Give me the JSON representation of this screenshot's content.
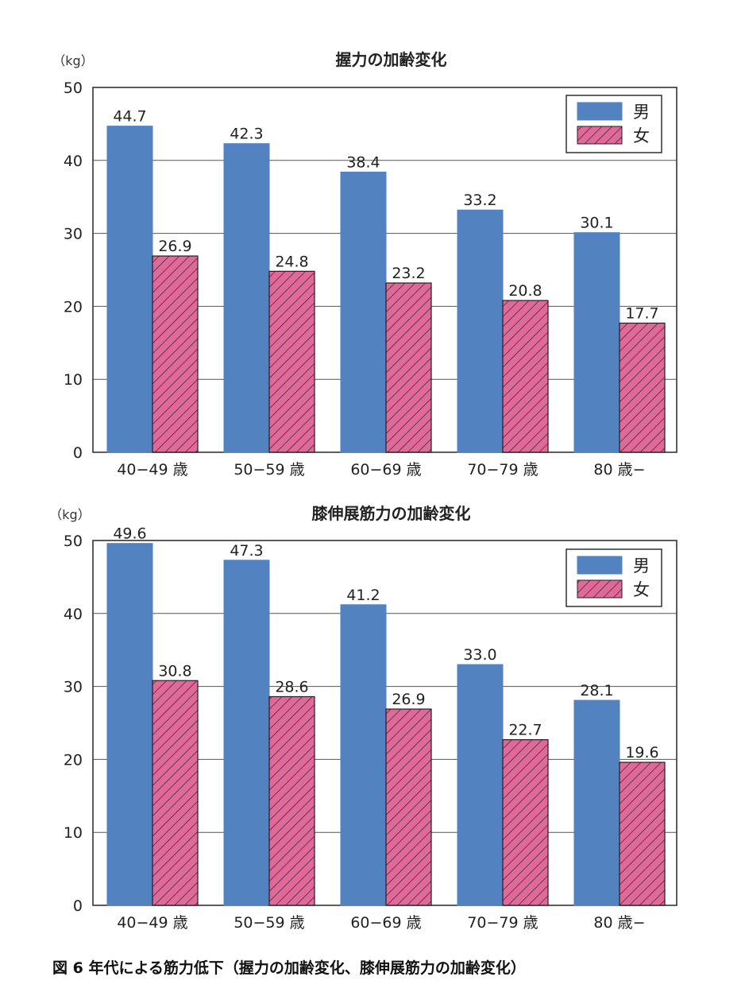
{
  "caption": "図 6 年代による筋力低下（握力の加齢変化、膝伸展筋力の加齢変化）",
  "colors": {
    "male": "#5282bf",
    "female": "#df6a9a",
    "hatch": "#2b1a22",
    "axis": "#333333",
    "grid": "#555555"
  },
  "chart_data": [
    {
      "type": "bar",
      "title": "握力の加齢変化",
      "unit_label": "（kg）",
      "categories": [
        "40−49 歳",
        "50−59 歳",
        "60−69 歳",
        "70−79 歳",
        "80 歳−"
      ],
      "yticks": [
        "0",
        "10",
        "20",
        "30",
        "40",
        "50"
      ],
      "ylim": [
        0,
        50
      ],
      "grid": true,
      "legend_position": "top-right",
      "series": [
        {
          "name": "男",
          "values": [
            44.7,
            42.3,
            38.4,
            33.2,
            30.1
          ],
          "labels": [
            "44.7",
            "42.3",
            "38.4",
            "33.2",
            "30.1"
          ],
          "pattern": "solid"
        },
        {
          "name": "女",
          "values": [
            26.9,
            24.8,
            23.2,
            20.8,
            17.7
          ],
          "labels": [
            "26.9",
            "24.8",
            "23.2",
            "20.8",
            "17.7"
          ],
          "pattern": "hatched"
        }
      ]
    },
    {
      "type": "bar",
      "title": "膝伸展筋力の加齢変化",
      "unit_label": "（kg）",
      "categories": [
        "40−49 歳",
        "50−59 歳",
        "60−69 歳",
        "70−79 歳",
        "80 歳−"
      ],
      "yticks": [
        "0",
        "10",
        "20",
        "30",
        "40",
        "50"
      ],
      "ylim": [
        0,
        50
      ],
      "grid": true,
      "legend_position": "top-right",
      "series": [
        {
          "name": "男",
          "values": [
            49.6,
            47.3,
            41.2,
            33.0,
            28.1
          ],
          "labels": [
            "49.6",
            "47.3",
            "41.2",
            "33.0",
            "28.1"
          ],
          "pattern": "solid"
        },
        {
          "name": "女",
          "values": [
            30.8,
            28.6,
            26.9,
            22.7,
            19.6
          ],
          "labels": [
            "30.8",
            "28.6",
            "26.9",
            "22.7",
            "19.6"
          ],
          "pattern": "hatched"
        }
      ]
    }
  ]
}
